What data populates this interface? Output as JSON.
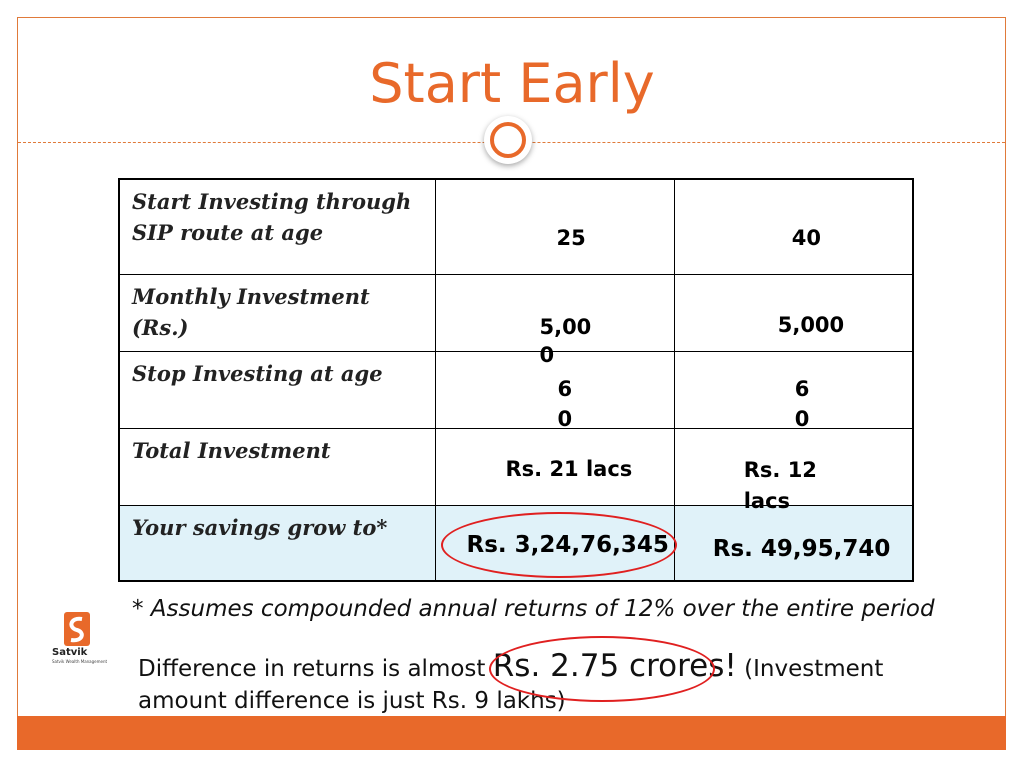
{
  "slide": {
    "title": "Start Early"
  },
  "table": {
    "rows": [
      {
        "label": "Start Investing through SIP route at age",
        "v1": "25",
        "v2": "40"
      },
      {
        "label": "Monthly Investment (Rs.)",
        "v1": "5,000",
        "v2": "5,000"
      },
      {
        "label": "Stop Investing at age",
        "v1": "60",
        "v2": "60"
      },
      {
        "label": "Total Investment",
        "v1": "Rs. 21 lacs",
        "v2": "Rs. 12 lacs"
      },
      {
        "label": "Your savings grow to*",
        "v1": "Rs. 3,24,76,345",
        "v2": "Rs. 49,95,740"
      }
    ]
  },
  "footnote": "* Assumes compounded annual returns of 12% over the entire period",
  "difference": {
    "prefix": "Difference in returns is almost ",
    "amount": "Rs. 2.75 crores!",
    "suffix": " (Investment amount difference is just Rs. 9 lakhs)"
  },
  "logo": {
    "name": "Satvik",
    "tagline": "Satvik Wealth Management"
  },
  "colors": {
    "accent": "#e8692a",
    "highlight_row": "#e0f2f9",
    "emphasis_ellipse": "#e02020"
  }
}
